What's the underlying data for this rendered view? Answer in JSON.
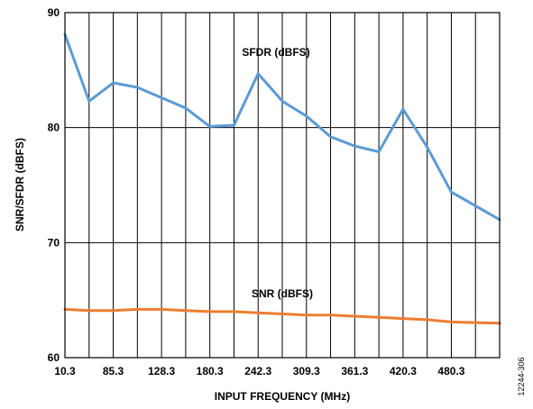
{
  "chart_data": {
    "type": "line",
    "xlabel": "INPUT FREQUENCY (MHz)",
    "ylabel": "SNR/SFDR (dBFS)",
    "ylim": [
      60,
      90
    ],
    "yticks": [
      60,
      70,
      80,
      90
    ],
    "x_tick_labels": [
      "10.3",
      "85.3",
      "128.3",
      "180.3",
      "242.3",
      "309.3",
      "361.3",
      "420.3",
      "480.3"
    ],
    "grid": true,
    "x": [
      10.3,
      41.3,
      85.3,
      105.3,
      128.3,
      150.3,
      180.3,
      200.3,
      242.3,
      270.3,
      309.3,
      335.3,
      361.3,
      390.3,
      420.3,
      450.3,
      480.3,
      500.3
    ],
    "series": [
      {
        "name": "SFDR (dBFS)",
        "color": "#5b9bd5",
        "values": [
          88.1,
          82.3,
          83.9,
          83.5,
          82.6,
          81.7,
          80.1,
          80.2,
          84.7,
          82.3,
          81.0,
          79.2,
          78.4,
          77.9,
          81.6,
          78.3,
          74.4,
          72.0
        ]
      },
      {
        "name": "SNR (dBFS)",
        "color": "#ed7d31",
        "values": [
          64.2,
          64.1,
          64.1,
          64.2,
          64.2,
          64.1,
          64.0,
          64.0,
          63.9,
          63.8,
          63.7,
          63.7,
          63.6,
          63.5,
          63.4,
          63.3,
          63.1,
          63.0
        ]
      }
    ],
    "annotations": [
      "SFDR (dBFS)",
      "SNR (dBFS)"
    ],
    "figure_id": "12244-306"
  }
}
